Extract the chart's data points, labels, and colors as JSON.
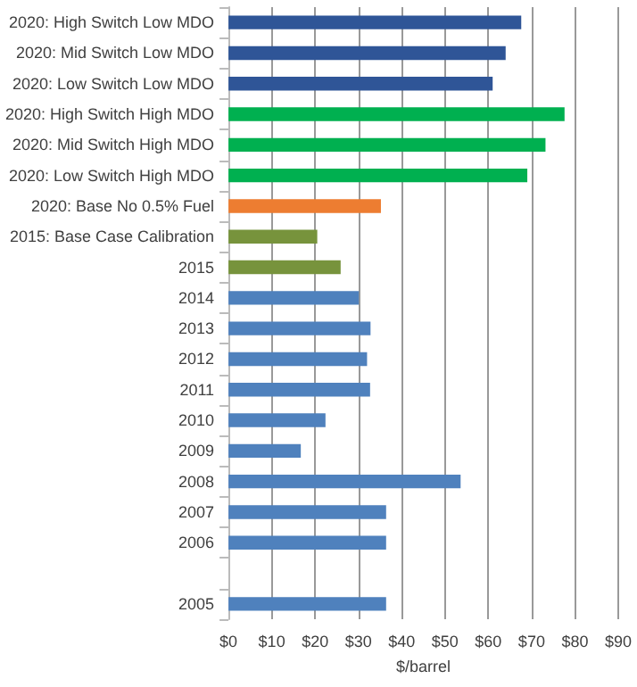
{
  "chart_data": {
    "type": "bar",
    "orientation": "horizontal",
    "xlabel": "$/barrel",
    "categories": [
      "2020: High Switch Low MDO",
      "2020: Mid Switch Low MDO",
      "2020: Low Switch Low MDO",
      "2020: High Switch High MDO",
      "2020: Mid Switch High MDO",
      "2020: Low Switch High MDO",
      "2020: Base No 0.5% Fuel",
      "2015: Base Case Calibration",
      "2015",
      "2014",
      "2013",
      "2012",
      "2011",
      "2010",
      "2009",
      "2008",
      "2007",
      "2006",
      null,
      "2005"
    ],
    "values": [
      67.6,
      64.0,
      61.0,
      77.6,
      73.2,
      69.0,
      35.2,
      20.5,
      25.9,
      30.1,
      32.8,
      32.0,
      32.7,
      22.4,
      16.7,
      53.6,
      36.4,
      36.4,
      null,
      36.4
    ],
    "colors": [
      "#2f5597",
      "#2f5597",
      "#2f5597",
      "#00b050",
      "#00b050",
      "#00b050",
      "#ed7d31",
      "#77933c",
      "#77933c",
      "#4f81bd",
      "#4f81bd",
      "#4f81bd",
      "#4f81bd",
      "#4f81bd",
      "#4f81bd",
      "#4f81bd",
      "#4f81bd",
      "#4f81bd",
      "#4f81bd",
      "#4f81bd"
    ],
    "xlim": [
      0,
      90
    ],
    "xticks": [
      {
        "value": 0,
        "label": "$0"
      },
      {
        "value": 10,
        "label": "$10"
      },
      {
        "value": 20,
        "label": "$20"
      },
      {
        "value": 30,
        "label": "$30"
      },
      {
        "value": 40,
        "label": "$40"
      },
      {
        "value": 50,
        "label": "$50"
      },
      {
        "value": 60,
        "label": "$60"
      },
      {
        "value": 70,
        "label": "$70"
      },
      {
        "value": 80,
        "label": "$80"
      },
      {
        "value": 90,
        "label": "$90"
      }
    ],
    "grid": "x"
  }
}
